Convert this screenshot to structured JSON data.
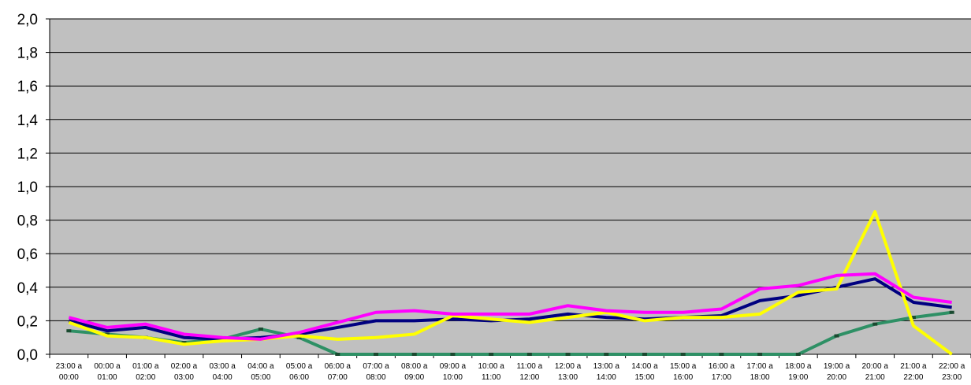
{
  "chart_data": {
    "type": "line",
    "title": "",
    "xlabel": "",
    "ylabel": "",
    "ylim": [
      0,
      2
    ],
    "y_ticks": [
      "0,0",
      "0,2",
      "0,4",
      "0,6",
      "0,8",
      "1,0",
      "1,2",
      "1,4",
      "1,6",
      "1,8",
      "2,0"
    ],
    "grid": true,
    "plot_background": "#c0c0c0",
    "legend": "none",
    "categories": [
      [
        "23:00 a",
        "00:00"
      ],
      [
        "00:00 a",
        "01:00"
      ],
      [
        "01:00 a",
        "02:00"
      ],
      [
        "02:00 a",
        "03:00"
      ],
      [
        "03:00 a",
        "04:00"
      ],
      [
        "04:00 a",
        "05:00"
      ],
      [
        "05:00 a",
        "06:00"
      ],
      [
        "06:00 a",
        "07:00"
      ],
      [
        "07:00 a",
        "08:00"
      ],
      [
        "08:00 a",
        "09:00"
      ],
      [
        "09:00 a",
        "10:00"
      ],
      [
        "10:00 a",
        "11:00"
      ],
      [
        "11:00 a",
        "12:00"
      ],
      [
        "12:00 a",
        "13:00"
      ],
      [
        "13:00 a",
        "14:00"
      ],
      [
        "14:00 a",
        "15:00"
      ],
      [
        "15:00 a",
        "16:00"
      ],
      [
        "16:00 a",
        "17:00"
      ],
      [
        "17:00 a",
        "18:00"
      ],
      [
        "18:00 a",
        "19:00"
      ],
      [
        "19:00 a",
        "20:00"
      ],
      [
        "20:00 a",
        "21:00"
      ],
      [
        "21:00 a",
        "22:00"
      ],
      [
        "22:00 a",
        "23:00"
      ]
    ],
    "series": [
      {
        "color": "#2e9065",
        "marker": "dash",
        "values": [
          0.14,
          0.12,
          0.1,
          0.07,
          0.09,
          0.15,
          0.1,
          0.0,
          0.0,
          0.0,
          0.0,
          0.0,
          0.0,
          0.0,
          0.0,
          0.0,
          0.0,
          0.0,
          0.0,
          0.0,
          0.11,
          0.18,
          0.22,
          0.25
        ]
      },
      {
        "color": "#000080",
        "marker": "none",
        "values": [
          0.2,
          0.14,
          0.16,
          0.1,
          0.09,
          0.1,
          0.12,
          0.16,
          0.2,
          0.2,
          0.21,
          0.2,
          0.21,
          0.24,
          0.22,
          0.21,
          0.22,
          0.23,
          0.32,
          0.35,
          0.4,
          0.45,
          0.31,
          0.28
        ]
      },
      {
        "color": "#ffff00",
        "marker": "none",
        "values": [
          0.19,
          0.11,
          0.1,
          0.06,
          0.08,
          0.09,
          0.11,
          0.09,
          0.1,
          0.12,
          0.23,
          0.21,
          0.19,
          0.22,
          0.25,
          0.2,
          0.22,
          0.22,
          0.24,
          0.37,
          0.39,
          0.85,
          0.17,
          0.0
        ]
      },
      {
        "color": "#ff00ff",
        "marker": "none",
        "values": [
          0.22,
          0.16,
          0.18,
          0.12,
          0.1,
          0.09,
          0.13,
          0.19,
          0.25,
          0.26,
          0.24,
          0.24,
          0.24,
          0.29,
          0.26,
          0.25,
          0.25,
          0.27,
          0.39,
          0.41,
          0.47,
          0.48,
          0.34,
          0.31
        ]
      }
    ]
  }
}
